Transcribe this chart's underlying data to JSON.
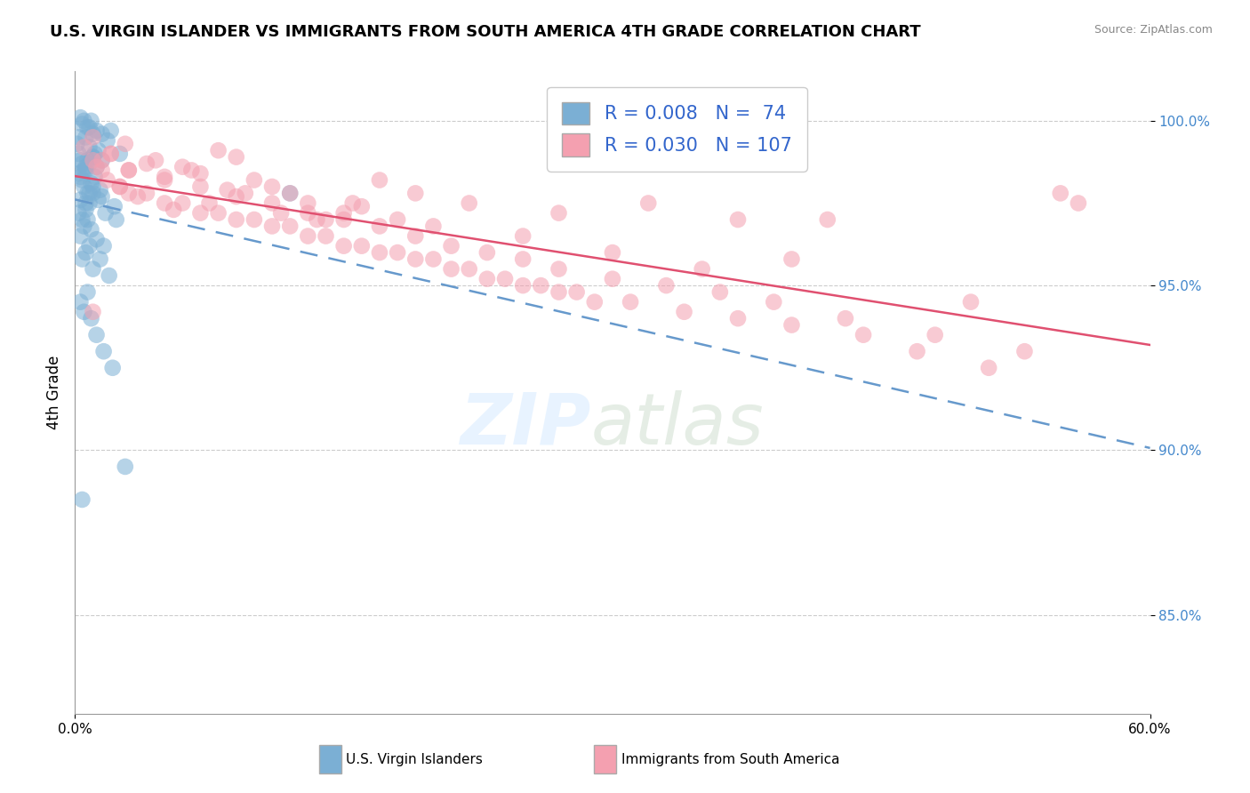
{
  "title": "U.S. VIRGIN ISLANDER VS IMMIGRANTS FROM SOUTH AMERICA 4TH GRADE CORRELATION CHART",
  "source": "Source: ZipAtlas.com",
  "ylabel": "4th Grade",
  "xlim": [
    0.0,
    60.0
  ],
  "ylim": [
    82.0,
    101.5
  ],
  "yticks": [
    85.0,
    90.0,
    95.0,
    100.0
  ],
  "ytick_labels": [
    "85.0%",
    "90.0%",
    "95.0%",
    "100.0%"
  ],
  "r_blue": 0.008,
  "n_blue": 74,
  "r_pink": 0.03,
  "n_pink": 107,
  "blue_color": "#7BAFD4",
  "pink_color": "#F4A0B0",
  "blue_line_color": "#6699CC",
  "pink_line_color": "#E05070",
  "blue_scatter_x": [
    0.2,
    0.5,
    0.8,
    1.0,
    1.2,
    0.3,
    0.4,
    0.6,
    0.7,
    0.9,
    1.5,
    2.0,
    0.1,
    0.2,
    0.3,
    0.5,
    0.8,
    1.0,
    1.3,
    1.8,
    2.5,
    0.4,
    0.6,
    0.7,
    1.1,
    0.2,
    0.3,
    0.4,
    0.6,
    0.8,
    1.0,
    1.2,
    1.5,
    0.5,
    0.7,
    0.9,
    1.1,
    1.4,
    0.3,
    0.6,
    0.8,
    1.0,
    1.5,
    2.2,
    0.2,
    0.4,
    0.6,
    0.8,
    1.0,
    1.3,
    1.7,
    2.3,
    12.0,
    0.3,
    0.5,
    0.7,
    0.9,
    1.2,
    1.6,
    0.4,
    0.6,
    0.8,
    1.0,
    1.4,
    1.9,
    0.3,
    0.5,
    0.7,
    0.9,
    1.2,
    1.6,
    2.1,
    0.4,
    2.8
  ],
  "blue_scatter_y": [
    99.5,
    100.0,
    99.8,
    99.6,
    99.7,
    100.1,
    99.9,
    99.5,
    99.8,
    100.0,
    99.6,
    99.7,
    99.3,
    99.0,
    98.8,
    98.5,
    99.2,
    98.9,
    99.1,
    99.4,
    99.0,
    98.7,
    98.6,
    98.8,
    99.0,
    98.4,
    98.3,
    98.2,
    98.5,
    98.7,
    98.9,
    98.6,
    98.8,
    98.0,
    97.8,
    98.1,
    98.3,
    97.9,
    97.6,
    97.5,
    97.8,
    98.0,
    97.7,
    97.4,
    97.2,
    97.0,
    97.3,
    97.5,
    97.8,
    97.6,
    97.2,
    97.0,
    97.8,
    96.5,
    96.8,
    97.0,
    96.7,
    96.4,
    96.2,
    95.8,
    96.0,
    96.2,
    95.5,
    95.8,
    95.3,
    94.5,
    94.2,
    94.8,
    94.0,
    93.5,
    93.0,
    92.5,
    88.5,
    89.5
  ],
  "pink_scatter_x": [
    0.5,
    1.0,
    1.5,
    2.0,
    3.0,
    4.0,
    5.0,
    6.0,
    7.0,
    8.0,
    9.0,
    10.0,
    11.0,
    12.0,
    13.0,
    14.0,
    15.0,
    16.0,
    18.0,
    20.0,
    25.0,
    30.0,
    35.0,
    40.0,
    50.0,
    55.0,
    1.2,
    2.5,
    3.5,
    5.5,
    7.5,
    9.5,
    11.5,
    13.5,
    15.5,
    17.0,
    19.0,
    22.0,
    27.0,
    32.0,
    37.0,
    42.0,
    1.0,
    2.0,
    3.0,
    5.0,
    7.0,
    9.0,
    11.0,
    13.0,
    15.0,
    17.0,
    19.0,
    21.0,
    23.0,
    25.0,
    27.0,
    30.0,
    33.0,
    36.0,
    39.0,
    43.0,
    48.0,
    53.0,
    1.5,
    2.5,
    4.0,
    6.0,
    8.0,
    10.0,
    12.0,
    14.0,
    16.0,
    18.0,
    20.0,
    22.0,
    24.0,
    26.0,
    28.0,
    31.0,
    34.0,
    37.0,
    40.0,
    44.0,
    47.0,
    51.0,
    56.0,
    1.8,
    3.0,
    5.0,
    7.0,
    9.0,
    11.0,
    13.0,
    15.0,
    17.0,
    19.0,
    21.0,
    23.0,
    25.0,
    27.0,
    29.0,
    1.0,
    2.8,
    4.5,
    6.5,
    8.5
  ],
  "pink_scatter_y": [
    99.2,
    99.5,
    98.8,
    99.0,
    98.5,
    98.7,
    98.3,
    98.6,
    98.4,
    99.1,
    98.9,
    98.2,
    98.0,
    97.8,
    97.5,
    97.0,
    97.2,
    97.4,
    97.0,
    96.8,
    96.5,
    96.0,
    95.5,
    95.8,
    94.5,
    97.8,
    98.6,
    98.0,
    97.7,
    97.3,
    97.5,
    97.8,
    97.2,
    97.0,
    97.5,
    98.2,
    97.8,
    97.5,
    97.2,
    97.5,
    97.0,
    97.0,
    98.8,
    99.0,
    98.5,
    98.2,
    98.0,
    97.7,
    97.5,
    97.2,
    97.0,
    96.8,
    96.5,
    96.2,
    96.0,
    95.8,
    95.5,
    95.2,
    95.0,
    94.8,
    94.5,
    94.0,
    93.5,
    93.0,
    98.5,
    98.0,
    97.8,
    97.5,
    97.2,
    97.0,
    96.8,
    96.5,
    96.2,
    96.0,
    95.8,
    95.5,
    95.2,
    95.0,
    94.8,
    94.5,
    94.2,
    94.0,
    93.8,
    93.5,
    93.0,
    92.5,
    97.5,
    98.2,
    97.8,
    97.5,
    97.2,
    97.0,
    96.8,
    96.5,
    96.2,
    96.0,
    95.8,
    95.5,
    95.2,
    95.0,
    94.8,
    94.5,
    94.2,
    99.3,
    98.8,
    98.5,
    97.9
  ]
}
